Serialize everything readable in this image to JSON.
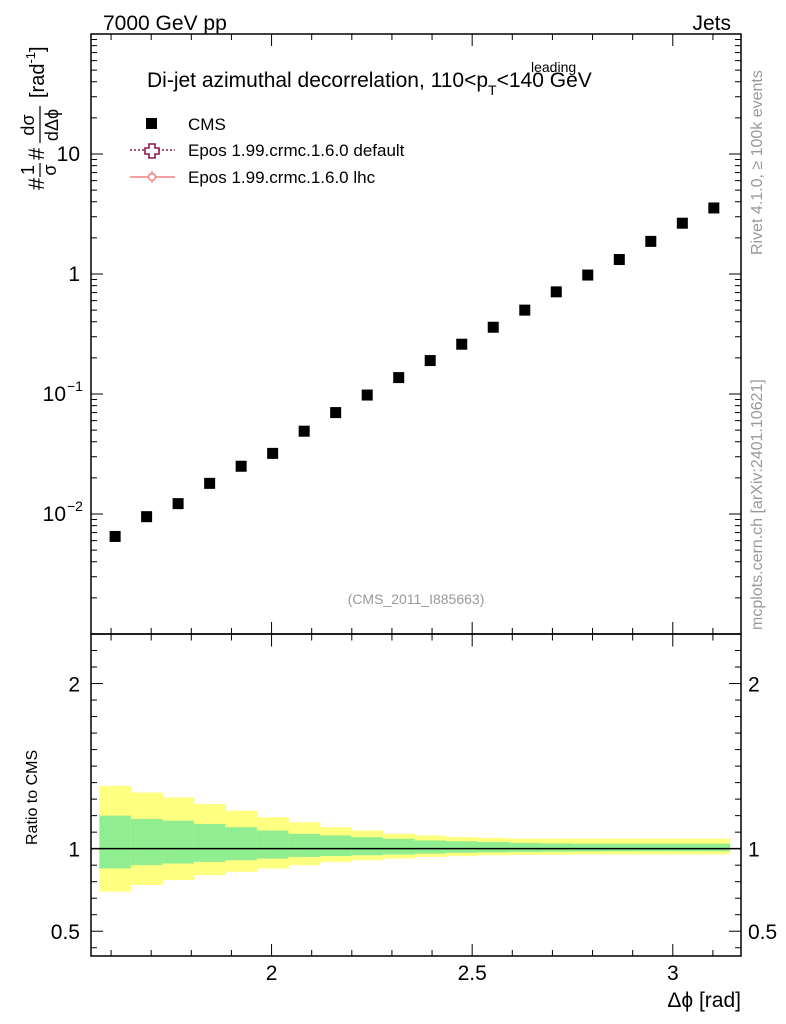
{
  "header": {
    "left": "7000 GeV pp",
    "right": "Jets"
  },
  "side_labels": {
    "rivet": "Rivet 4.1.0, ≥ 100k events",
    "mcplots": "mcplots.cern.ch [arXiv:2401.10621]"
  },
  "chart_data": {
    "type": "scatter",
    "title_main": "Di-jet azimuthal decorrelation, 110<p",
    "title_sup": "leading",
    "title_sub": "T",
    "title_end": "<140 GeV",
    "watermark": "(CMS_2011_I885663)",
    "xlabel": "Δϕ [rad]",
    "ylabel_hash1": "#",
    "ylabel_one": "1",
    "ylabel_sigma": "σ",
    "ylabel_hash2": "#",
    "ylabel_dsigma": "dσ",
    "ylabel_ddphi": "dΔϕ",
    "ylabel_unit": "[rad",
    "ylabel_unit_sup": "-1",
    "ylabel_unit_end": "]",
    "ratio_ylabel": "Ratio to CMS",
    "xlim": [
      1.55,
      3.17
    ],
    "ylim_log": [
      0.001,
      100
    ],
    "ratio_ylim": [
      0.35,
      2.3
    ],
    "x_ticks": [
      {
        "value": 2,
        "label": "2"
      },
      {
        "value": 2.5,
        "label": "2.5"
      },
      {
        "value": 3,
        "label": "3"
      }
    ],
    "y_ticks": [
      {
        "value": 0.01,
        "base": "10",
        "exp": "−2"
      },
      {
        "value": 0.1,
        "base": "10",
        "exp": "−1"
      },
      {
        "value": 1,
        "base": "1",
        "exp": ""
      },
      {
        "value": 10,
        "base": "10",
        "exp": ""
      }
    ],
    "ratio_ticks": [
      {
        "value": 0.5,
        "label": "0.5"
      },
      {
        "value": 1,
        "label": "1"
      },
      {
        "value": 2,
        "label": "2"
      }
    ],
    "legend": [
      {
        "name": "CMS",
        "style": "square"
      },
      {
        "name": "Epos 1.99.crmc.1.6.0 default",
        "style": "cross-dotted",
        "color": "#8b1a4a"
      },
      {
        "name": "Epos 1.99.crmc.1.6.0 lhc",
        "style": "circle-line",
        "color": "#f08080"
      }
    ],
    "series": [
      {
        "name": "CMS",
        "x": [
          1.6101,
          1.6886,
          1.7671,
          1.8457,
          1.9242,
          2.0027,
          2.0813,
          2.1598,
          2.2384,
          2.3169,
          2.3954,
          2.474,
          2.5525,
          2.6311,
          2.7096,
          2.7881,
          2.8667,
          2.9452,
          3.0238,
          3.1023
        ],
        "y": [
          0.0065,
          0.0095,
          0.0122,
          0.018,
          0.025,
          0.032,
          0.049,
          0.07,
          0.098,
          0.137,
          0.19,
          0.26,
          0.36,
          0.5,
          0.71,
          0.98,
          1.32,
          1.87,
          2.65,
          3.55
        ]
      }
    ],
    "bin_edges": [
      1.5708,
      1.6493,
      1.7279,
      1.8064,
      1.885,
      1.9635,
      2.042,
      2.1206,
      2.1991,
      2.2777,
      2.3562,
      2.4347,
      2.5133,
      2.5918,
      2.6704,
      2.7489,
      2.8274,
      2.906,
      2.9845,
      3.0631,
      3.1416
    ],
    "band_stat_low": [
      0.88,
      0.9,
      0.91,
      0.92,
      0.93,
      0.94,
      0.95,
      0.955,
      0.96,
      0.965,
      0.97,
      0.975,
      0.978,
      0.98,
      0.982,
      0.983,
      0.984,
      0.985,
      0.985,
      0.985
    ],
    "band_stat_high": [
      1.2,
      1.18,
      1.17,
      1.15,
      1.13,
      1.11,
      1.09,
      1.08,
      1.07,
      1.06,
      1.05,
      1.045,
      1.04,
      1.035,
      1.032,
      1.03,
      1.03,
      1.03,
      1.03,
      1.03
    ],
    "band_tot_low": [
      0.74,
      0.78,
      0.81,
      0.84,
      0.86,
      0.88,
      0.9,
      0.92,
      0.93,
      0.94,
      0.95,
      0.955,
      0.96,
      0.962,
      0.964,
      0.965,
      0.965,
      0.965,
      0.965,
      0.965
    ],
    "band_tot_high": [
      1.38,
      1.34,
      1.31,
      1.27,
      1.23,
      1.19,
      1.16,
      1.13,
      1.11,
      1.09,
      1.08,
      1.07,
      1.065,
      1.06,
      1.06,
      1.06,
      1.06,
      1.06,
      1.06,
      1.06
    ],
    "colors": {
      "stat_band": "#90ee90",
      "total_band": "#ffff80",
      "data": "#000000"
    }
  }
}
